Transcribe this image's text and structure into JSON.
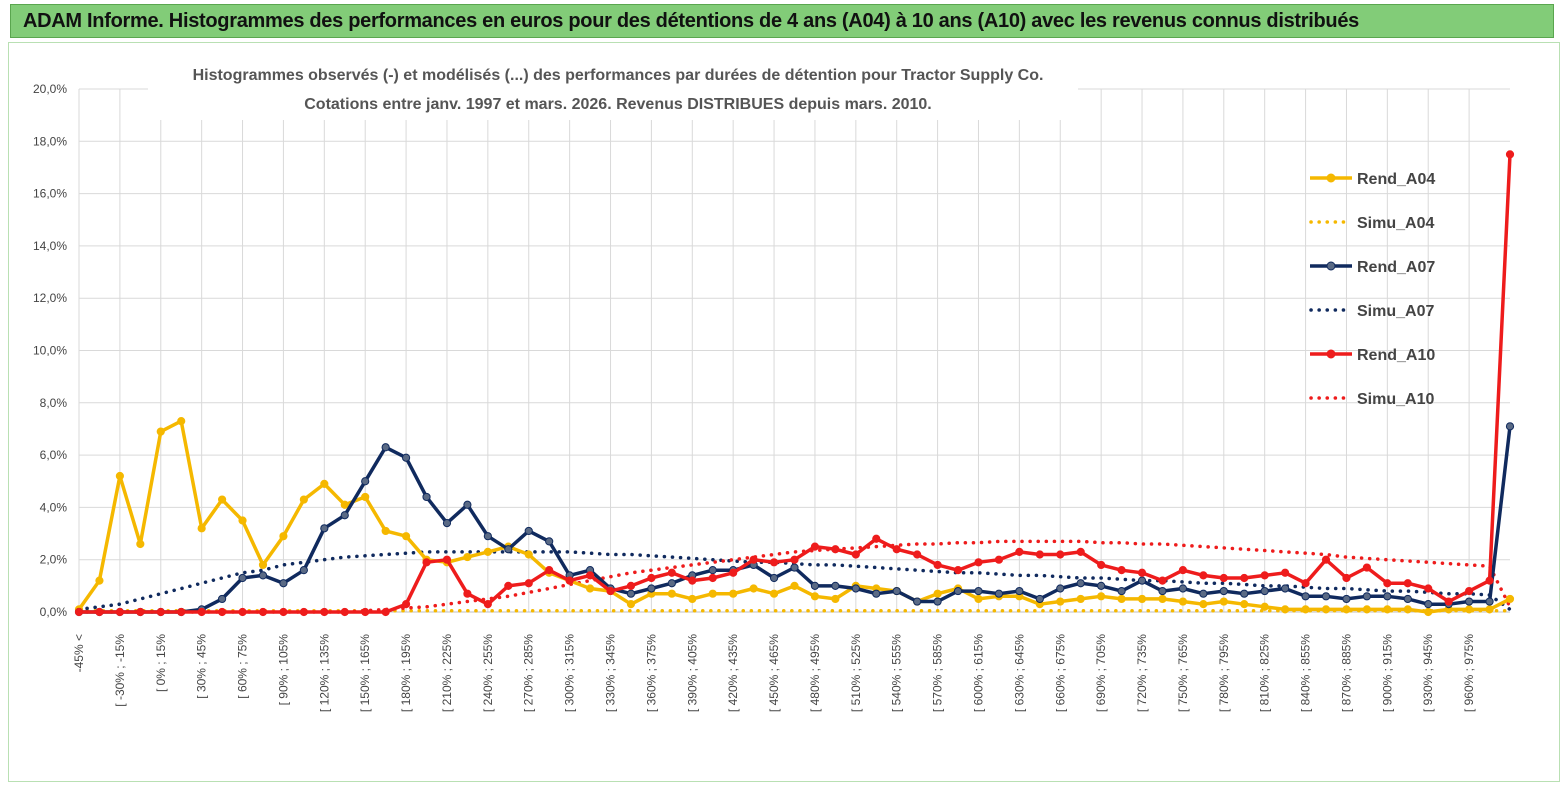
{
  "banner": {
    "title": "ADAM Informe. Histogrammes des performances en euros pour des détentions de 4 ans (A04) à 10 ans (A10) avec les revenus connus distribués"
  },
  "colors": {
    "banner_bg": "#82cc78",
    "A04": "#f5b800",
    "A07": "#102a5e",
    "A10": "#ee1c1c",
    "grid": "#d9d9d9"
  },
  "chart_data": {
    "type": "line",
    "title": "Histogrammes observés (-)  et modélisés (...) des performances par durées de détention pour Tractor Supply Co.",
    "subtitle": "Cotations entre janv. 1997 et mars. 2026. Revenus DISTRIBUES depuis mars. 2010.",
    "ylim": [
      0,
      20
    ],
    "y_ticks": [
      "0,0%",
      "2,0%",
      "4,0%",
      "6,0%",
      "8,0%",
      "10,0%",
      "12,0%",
      "14,0%",
      "16,0%",
      "18,0%",
      "20,0%"
    ],
    "x_tick_labels": [
      "-45% <",
      "[ -30% ; -15%",
      "[ 0% ; 15%",
      "[ 30% ; 45%",
      "[ 60% ; 75%",
      "[ 90% ; 105%",
      "[ 120% ; 135%",
      "[ 150% ; 165%",
      "[ 180% ; 195%",
      "[ 210% ; 225%",
      "[ 240% ; 255%",
      "[ 270% ; 285%",
      "[ 300% ; 315%",
      "[ 330% ; 345%",
      "[ 360% ; 375%",
      "[ 390% ; 405%",
      "[ 420% ; 435%",
      "[ 450% ; 465%",
      "[ 480% ; 495%",
      "[ 510% ; 525%",
      "[ 540% ; 555%",
      "[ 570% ; 585%",
      "[ 600% ; 615%",
      "[ 630% ; 645%",
      "[ 660% ; 675%",
      "[ 690% ; 705%",
      "[ 720% ; 735%",
      "[ 750% ; 765%",
      "[ 780% ; 795%",
      "[ 810% ; 825%",
      "[ 840% ; 855%",
      "[ 870% ; 885%",
      "[ 900% ; 915%",
      "[ 930% ; 945%",
      "[ 960% ; 975%"
    ],
    "n_points": 71,
    "legend_position": "right",
    "series": [
      {
        "name": "Rend_A04",
        "key": "A04",
        "style": "solid",
        "values": [
          0.1,
          1.2,
          5.2,
          2.6,
          6.9,
          7.3,
          3.2,
          4.3,
          3.5,
          1.8,
          2.9,
          4.3,
          4.9,
          4.1,
          4.4,
          3.1,
          2.9,
          2.0,
          1.9,
          2.1,
          2.3,
          2.5,
          2.2,
          1.5,
          1.2,
          0.9,
          0.8,
          0.3,
          0.7,
          0.7,
          0.5,
          0.7,
          0.7,
          0.9,
          0.7,
          1.0,
          0.6,
          0.5,
          1.0,
          0.9,
          0.8,
          0.4,
          0.7,
          0.9,
          0.5,
          0.6,
          0.6,
          0.3,
          0.4,
          0.5,
          0.6,
          0.5,
          0.5,
          0.5,
          0.4,
          0.3,
          0.4,
          0.3,
          0.2,
          0.1,
          0.1,
          0.1,
          0.1,
          0.1,
          0.1,
          0.1,
          0.0,
          0.1,
          0.1,
          0.1,
          0.5
        ]
      },
      {
        "name": "Simu_A04",
        "key": "A04",
        "style": "dotted",
        "values": [
          0.05,
          0.05,
          0.05,
          0.05,
          0.05,
          0.05,
          0.05,
          0.05,
          0.05,
          0.05,
          0.05,
          0.05,
          0.05,
          0.05,
          0.05,
          0.05,
          0.05,
          0.05,
          0.05,
          0.05,
          0.05,
          0.05,
          0.05,
          0.05,
          0.05,
          0.05,
          0.05,
          0.05,
          0.05,
          0.05,
          0.05,
          0.05,
          0.05,
          0.05,
          0.05,
          0.05,
          0.05,
          0.05,
          0.05,
          0.05,
          0.05,
          0.05,
          0.05,
          0.05,
          0.05,
          0.05,
          0.05,
          0.05,
          0.05,
          0.05,
          0.05,
          0.05,
          0.05,
          0.05,
          0.05,
          0.05,
          0.05,
          0.05,
          0.05,
          0.05,
          0.05,
          0.05,
          0.05,
          0.05,
          0.05,
          0.05,
          0.05,
          0.05,
          0.05,
          0.05,
          0.05
        ]
      },
      {
        "name": "Rend_A07",
        "key": "A07",
        "style": "solid",
        "values": [
          0.0,
          0.0,
          0.0,
          0.0,
          0.0,
          0.0,
          0.1,
          0.5,
          1.3,
          1.4,
          1.1,
          1.6,
          3.2,
          3.7,
          5.0,
          6.3,
          5.9,
          4.4,
          3.4,
          4.1,
          2.9,
          2.4,
          3.1,
          2.7,
          1.4,
          1.6,
          0.9,
          0.7,
          0.9,
          1.1,
          1.4,
          1.6,
          1.6,
          1.8,
          1.3,
          1.7,
          1.0,
          1.0,
          0.9,
          0.7,
          0.8,
          0.4,
          0.4,
          0.8,
          0.8,
          0.7,
          0.8,
          0.5,
          0.9,
          1.1,
          1.0,
          0.8,
          1.2,
          0.8,
          0.9,
          0.7,
          0.8,
          0.7,
          0.8,
          0.9,
          0.6,
          0.6,
          0.5,
          0.6,
          0.6,
          0.5,
          0.3,
          0.3,
          0.4,
          0.4,
          7.1
        ]
      },
      {
        "name": "Simu_A07",
        "key": "A07",
        "style": "dotted",
        "values": [
          0.1,
          0.2,
          0.3,
          0.5,
          0.7,
          0.9,
          1.1,
          1.3,
          1.5,
          1.6,
          1.8,
          1.9,
          2.0,
          2.1,
          2.15,
          2.2,
          2.25,
          2.3,
          2.3,
          2.3,
          2.3,
          2.3,
          2.3,
          2.3,
          2.3,
          2.25,
          2.2,
          2.2,
          2.15,
          2.1,
          2.05,
          2.0,
          1.95,
          1.9,
          1.9,
          1.85,
          1.8,
          1.8,
          1.75,
          1.7,
          1.65,
          1.6,
          1.55,
          1.5,
          1.5,
          1.45,
          1.4,
          1.4,
          1.35,
          1.3,
          1.3,
          1.25,
          1.2,
          1.2,
          1.15,
          1.1,
          1.1,
          1.05,
          1.0,
          1.0,
          0.95,
          0.9,
          0.9,
          0.85,
          0.8,
          0.8,
          0.75,
          0.7,
          0.7,
          0.65,
          0.1
        ]
      },
      {
        "name": "Rend_A10",
        "key": "A10",
        "style": "solid",
        "values": [
          0.0,
          0.0,
          0.0,
          0.0,
          0.0,
          0.0,
          0.0,
          0.0,
          0.0,
          0.0,
          0.0,
          0.0,
          0.0,
          0.0,
          0.0,
          0.0,
          0.3,
          1.9,
          2.0,
          0.7,
          0.3,
          1.0,
          1.1,
          1.6,
          1.2,
          1.4,
          0.8,
          1.0,
          1.3,
          1.5,
          1.2,
          1.3,
          1.5,
          2.0,
          1.9,
          2.0,
          2.5,
          2.4,
          2.2,
          2.8,
          2.4,
          2.2,
          1.8,
          1.6,
          1.9,
          2.0,
          2.3,
          2.2,
          2.2,
          2.3,
          1.8,
          1.6,
          1.5,
          1.2,
          1.6,
          1.4,
          1.3,
          1.3,
          1.4,
          1.5,
          1.1,
          2.0,
          1.3,
          1.7,
          1.1,
          1.1,
          0.9,
          0.4,
          0.8,
          1.2,
          17.5
        ]
      },
      {
        "name": "Simu_A10",
        "key": "A10",
        "style": "dotted",
        "values": [
          0.0,
          0.0,
          0.0,
          0.0,
          0.0,
          0.0,
          0.0,
          0.0,
          0.0,
          0.0,
          0.0,
          0.0,
          0.0,
          0.0,
          0.05,
          0.1,
          0.15,
          0.2,
          0.3,
          0.4,
          0.5,
          0.6,
          0.75,
          0.9,
          1.05,
          1.2,
          1.35,
          1.5,
          1.6,
          1.7,
          1.8,
          1.9,
          2.0,
          2.1,
          2.2,
          2.3,
          2.35,
          2.4,
          2.45,
          2.5,
          2.55,
          2.6,
          2.6,
          2.65,
          2.65,
          2.7,
          2.7,
          2.7,
          2.7,
          2.7,
          2.65,
          2.65,
          2.6,
          2.6,
          2.55,
          2.5,
          2.45,
          2.4,
          2.35,
          2.3,
          2.25,
          2.2,
          2.1,
          2.05,
          2.0,
          1.95,
          1.9,
          1.85,
          1.8,
          1.75,
          0.2
        ]
      }
    ]
  }
}
